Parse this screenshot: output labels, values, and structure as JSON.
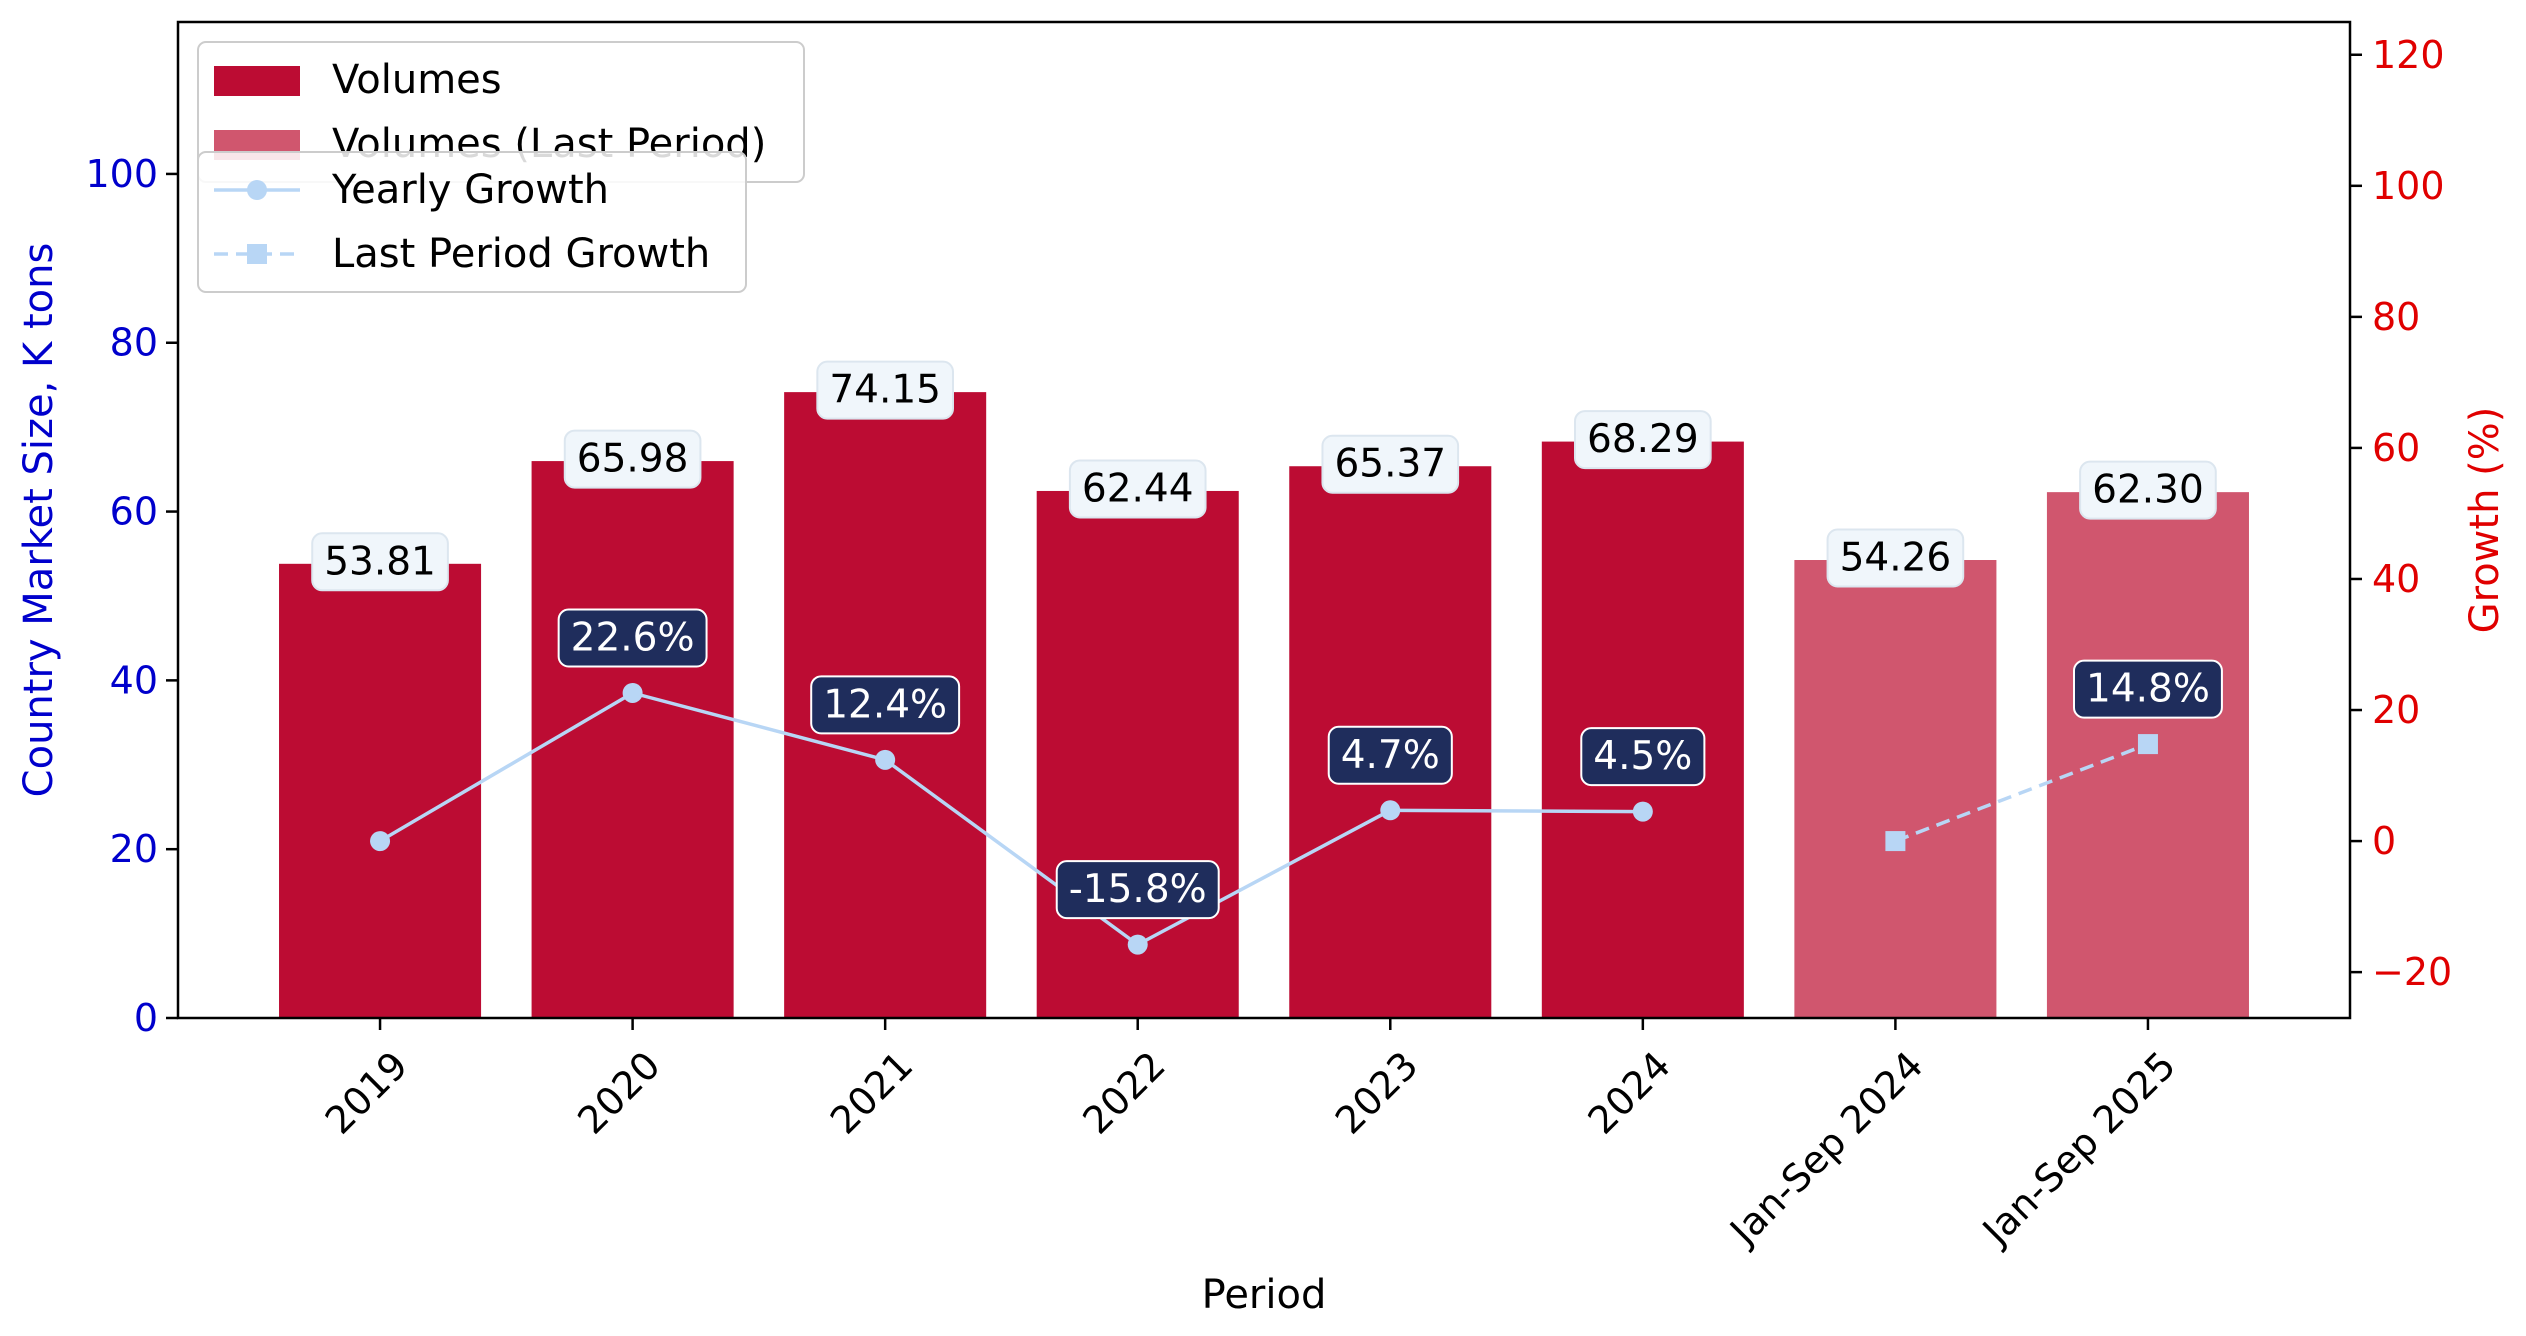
{
  "chart_data": {
    "type": "bar",
    "categories": [
      "2019",
      "2020",
      "2021",
      "2022",
      "2023",
      "2024",
      "Jan-Sep 2024",
      "Jan-Sep 2025"
    ],
    "xlabel": "Period",
    "ylabel": "Country Market Size, K tons",
    "y2label": "Growth (%)",
    "ylim": [
      0,
      118
    ],
    "y2lim": [
      -27,
      125
    ],
    "yticks": [
      0,
      20,
      40,
      60,
      80,
      100
    ],
    "y2ticks": [
      -20,
      0,
      20,
      40,
      60,
      80,
      100,
      120
    ],
    "grid": false,
    "series": [
      {
        "name": "Volumes",
        "kind": "bar",
        "color": "#bc0c33",
        "values": [
          53.81,
          65.98,
          74.15,
          62.44,
          65.37,
          68.29,
          null,
          null
        ],
        "labels": [
          "53.81",
          "65.98",
          "74.15",
          "62.44",
          "65.37",
          "68.29",
          null,
          null
        ]
      },
      {
        "name": "Volumes (Last Period)",
        "kind": "bar",
        "color": "#d0566e",
        "values": [
          null,
          null,
          null,
          null,
          null,
          null,
          54.26,
          62.3
        ],
        "labels": [
          null,
          null,
          null,
          null,
          null,
          null,
          "54.26",
          "62.30"
        ]
      },
      {
        "name": "Yearly Growth",
        "kind": "line",
        "axis": "right",
        "color": "#b8d6f5",
        "marker": "circle",
        "dash": "solid",
        "values": [
          0,
          22.6,
          12.4,
          -15.8,
          4.7,
          4.5,
          null,
          null
        ],
        "labels": [
          null,
          "22.6%",
          "12.4%",
          "-15.8%",
          "4.7%",
          "4.5%",
          null,
          null
        ]
      },
      {
        "name": "Last Period Growth",
        "kind": "line",
        "axis": "right",
        "color": "#b8d6f5",
        "marker": "square",
        "dash": "dashed",
        "values": [
          null,
          null,
          null,
          null,
          null,
          null,
          0,
          14.8
        ],
        "labels": [
          null,
          null,
          null,
          null,
          null,
          null,
          null,
          "14.8%"
        ]
      }
    ],
    "legends": [
      {
        "placement": "top-left",
        "entries": [
          "Volumes",
          "Volumes (Last Period)"
        ]
      },
      {
        "placement": "top-left",
        "entries": [
          "Yearly Growth",
          "Last Period Growth"
        ]
      }
    ],
    "colors": {
      "left_axis": "#0000cc",
      "right_axis": "#e00000",
      "bar_label_bg": "#f0f6fb",
      "growth_label_bg": "#1f2d5c"
    }
  }
}
